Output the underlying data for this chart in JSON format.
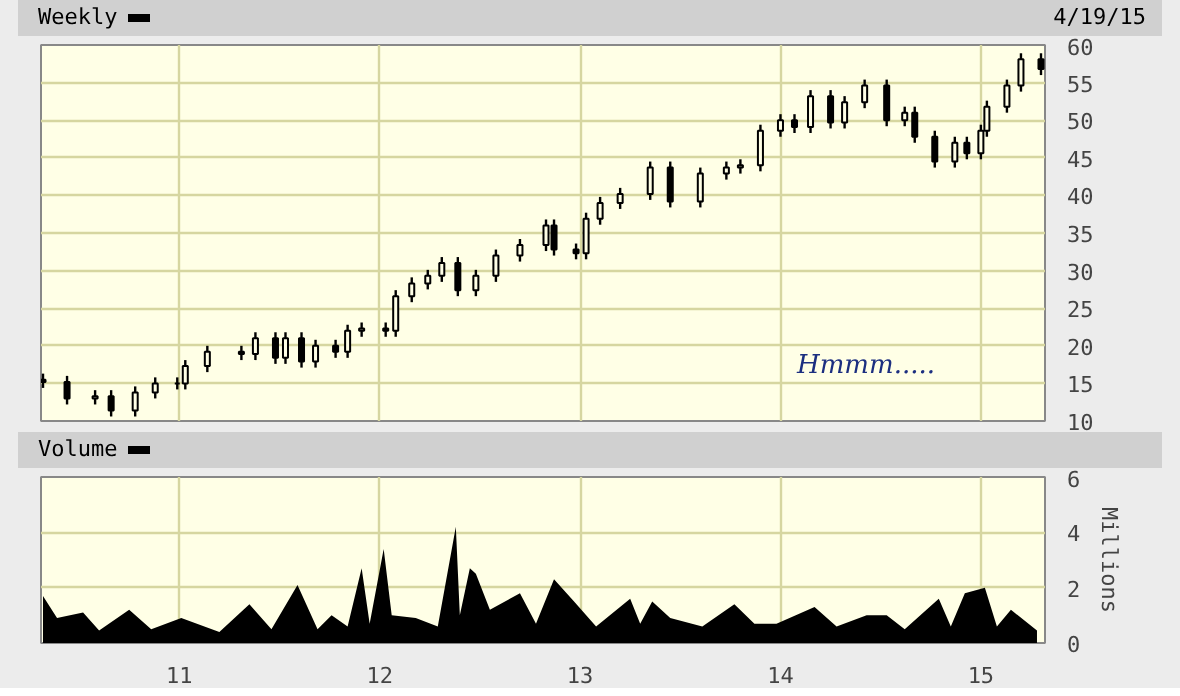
{
  "chart_data": [
    {
      "type": "candlestick",
      "title": "Weekly",
      "annotations": [
        "4/19/15",
        "Hmmm....."
      ],
      "x": [
        2010.32,
        2010.44,
        2010.58,
        2010.66,
        2010.78,
        2010.88,
        2010.99,
        2011.03,
        2011.14,
        2011.31,
        2011.38,
        2011.48,
        2011.53,
        2011.61,
        2011.68,
        2011.78,
        2011.84,
        2011.91,
        2012.03,
        2012.08,
        2012.16,
        2012.24,
        2012.31,
        2012.39,
        2012.48,
        2012.58,
        2012.7,
        2012.83,
        2012.87,
        2012.98,
        2013.03,
        2013.1,
        2013.2,
        2013.35,
        2013.45,
        2013.6,
        2013.73,
        2013.8,
        2013.9,
        2014.0,
        2014.07,
        2014.15,
        2014.25,
        2014.32,
        2014.42,
        2014.53,
        2014.62,
        2014.67,
        2014.77,
        2014.87,
        2014.93,
        2015.0,
        2015.03,
        2015.13,
        2015.2,
        2015.3
      ],
      "ohlc": [
        [
          15.5,
          16.3,
          14.4,
          15.2
        ],
        [
          15.2,
          16.0,
          12.2,
          13.0
        ],
        [
          13.0,
          14.1,
          12.2,
          13.3
        ],
        [
          13.3,
          14.1,
          10.6,
          11.4
        ],
        [
          11.4,
          14.6,
          10.6,
          13.8
        ],
        [
          13.8,
          15.8,
          13.0,
          15.0
        ],
        [
          15.0,
          15.8,
          14.2,
          15.0
        ],
        [
          15.0,
          18.1,
          14.2,
          17.3
        ],
        [
          17.3,
          20.0,
          16.5,
          19.2
        ],
        [
          19.2,
          20.0,
          18.1,
          18.9
        ],
        [
          18.9,
          21.8,
          18.1,
          21.0
        ],
        [
          21.0,
          21.8,
          17.6,
          18.4
        ],
        [
          18.4,
          21.8,
          17.6,
          21.0
        ],
        [
          21.0,
          21.8,
          17.1,
          17.9
        ],
        [
          17.9,
          20.8,
          17.1,
          20.0
        ],
        [
          20.0,
          20.8,
          18.4,
          19.2
        ],
        [
          19.2,
          22.8,
          18.4,
          22.0
        ],
        [
          22.0,
          23.1,
          21.2,
          22.3
        ],
        [
          22.3,
          23.1,
          21.2,
          22.0
        ],
        [
          22.0,
          27.4,
          21.2,
          26.6
        ],
        [
          26.6,
          29.1,
          25.8,
          28.3
        ],
        [
          28.3,
          30.1,
          27.5,
          29.3
        ],
        [
          29.3,
          31.8,
          28.5,
          31.0
        ],
        [
          31.0,
          31.8,
          26.6,
          27.4
        ],
        [
          27.4,
          30.1,
          26.6,
          29.3
        ],
        [
          29.3,
          32.8,
          28.5,
          32.0
        ],
        [
          32.0,
          34.2,
          31.2,
          33.4
        ],
        [
          33.4,
          36.8,
          32.6,
          36.0
        ],
        [
          36.0,
          36.8,
          32.0,
          32.8
        ],
        [
          32.8,
          33.6,
          31.5,
          32.3
        ],
        [
          32.3,
          37.7,
          31.5,
          36.9
        ],
        [
          36.9,
          39.8,
          36.1,
          39.0
        ],
        [
          39.0,
          41.0,
          38.2,
          40.2
        ],
        [
          40.2,
          44.5,
          39.4,
          43.7
        ],
        [
          43.7,
          44.5,
          38.4,
          39.2
        ],
        [
          39.2,
          43.7,
          38.4,
          42.9
        ],
        [
          42.9,
          44.5,
          42.1,
          43.7
        ],
        [
          43.7,
          44.8,
          42.9,
          44.0
        ],
        [
          44.0,
          49.4,
          43.2,
          48.6
        ],
        [
          48.6,
          50.8,
          47.8,
          50.0
        ],
        [
          50.0,
          50.8,
          48.3,
          49.1
        ],
        [
          49.1,
          54.0,
          48.3,
          53.2
        ],
        [
          53.2,
          54.0,
          48.9,
          49.7
        ],
        [
          49.7,
          53.2,
          48.9,
          52.4
        ],
        [
          52.4,
          55.4,
          51.6,
          54.6
        ],
        [
          54.6,
          55.4,
          49.2,
          50.0
        ],
        [
          50.0,
          51.8,
          49.2,
          51.0
        ],
        [
          51.0,
          51.8,
          47.0,
          47.8
        ],
        [
          47.8,
          48.6,
          43.7,
          44.5
        ],
        [
          44.5,
          47.8,
          43.7,
          47.0
        ],
        [
          47.0,
          47.8,
          44.8,
          45.6
        ],
        [
          45.6,
          49.4,
          44.8,
          48.6
        ],
        [
          48.6,
          52.6,
          47.8,
          51.8
        ],
        [
          51.8,
          55.4,
          51.0,
          54.6
        ],
        [
          54.6,
          58.9,
          53.8,
          58.1
        ],
        [
          58.1,
          58.9,
          56.0,
          56.8
        ]
      ],
      "xlim": [
        2010.31,
        2015.32
      ],
      "ylim": [
        10,
        60
      ],
      "xticks": [
        {
          "value": 2011,
          "label": null
        },
        {
          "value": 2012,
          "label": null
        },
        {
          "value": 2013,
          "label": null
        },
        {
          "value": 2014,
          "label": null
        },
        {
          "value": 2015,
          "label": null
        }
      ],
      "yticks": [
        10,
        15,
        20,
        25,
        30,
        35,
        40,
        45,
        50,
        55,
        60
      ],
      "grid": true,
      "tick_labels": "y"
    },
    {
      "type": "area",
      "title": "Volume",
      "ylabel": "Millions",
      "x": [
        2010.32,
        2010.39,
        2010.52,
        2010.6,
        2010.75,
        2010.86,
        2011.01,
        2011.2,
        2011.35,
        2011.46,
        2011.59,
        2011.69,
        2011.76,
        2011.84,
        2011.91,
        2011.95,
        2012.02,
        2012.06,
        2012.18,
        2012.29,
        2012.38,
        2012.4,
        2012.45,
        2012.48,
        2012.55,
        2012.7,
        2012.78,
        2012.87,
        2012.97,
        2013.08,
        2013.25,
        2013.3,
        2013.36,
        2013.45,
        2013.61,
        2013.77,
        2013.87,
        2013.98,
        2014.17,
        2014.28,
        2014.43,
        2014.53,
        2014.62,
        2014.79,
        2014.85,
        2014.92,
        2015.02,
        2015.08,
        2015.15,
        2015.28
      ],
      "series": [
        {
          "color": "#000000",
          "values": [
            1.7,
            0.9,
            1.1,
            0.45,
            1.2,
            0.5,
            0.9,
            0.4,
            1.4,
            0.5,
            2.1,
            0.5,
            1.0,
            0.6,
            2.7,
            0.7,
            3.4,
            1.0,
            0.9,
            0.6,
            4.2,
            1.0,
            2.7,
            2.5,
            1.2,
            1.8,
            0.7,
            2.3,
            1.5,
            0.6,
            1.6,
            0.7,
            1.5,
            0.9,
            0.6,
            1.4,
            0.7,
            0.7,
            1.3,
            0.6,
            1.0,
            1.0,
            0.5,
            1.6,
            0.6,
            1.8,
            2.0,
            0.6,
            1.2,
            0.45
          ]
        }
      ],
      "xlim": [
        2010.31,
        2015.32
      ],
      "ylim": [
        0,
        6
      ],
      "xticks": [
        {
          "value": 2011,
          "label": "11"
        },
        {
          "value": 2012,
          "label": "12"
        },
        {
          "value": 2013,
          "label": "13"
        },
        {
          "value": 2014,
          "label": "14"
        },
        {
          "value": 2015,
          "label": "15"
        }
      ],
      "yticks": [
        0,
        2,
        4,
        6
      ],
      "grid": true
    }
  ]
}
